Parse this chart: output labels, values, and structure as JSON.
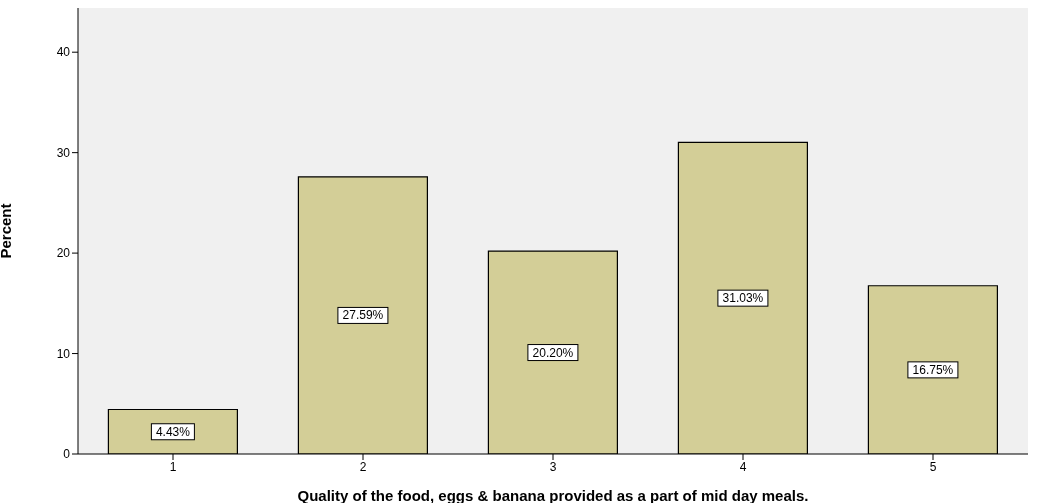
{
  "chart_data": {
    "type": "bar",
    "xlabel": "Quality of the food, eggs & banana provided as a part of mid day meals.",
    "ylabel": "Percent",
    "categories": [
      "1",
      "2",
      "3",
      "4",
      "5"
    ],
    "values": [
      4.43,
      27.59,
      20.2,
      31.03,
      16.75
    ],
    "value_labels": [
      "4.43%",
      "27.59%",
      "20.20%",
      "31.03%",
      "16.75%"
    ],
    "color": "#d3ce97",
    "ylim": [
      0,
      44.4
    ],
    "yticks": [
      0,
      10,
      20,
      30,
      40
    ],
    "grid": false
  }
}
